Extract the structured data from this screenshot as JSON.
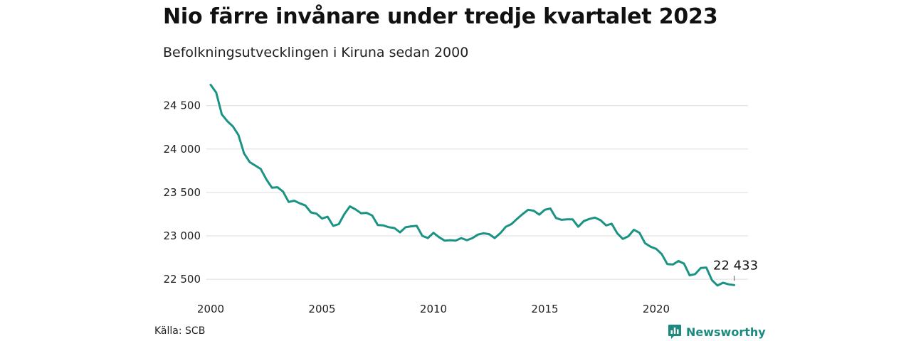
{
  "title": "Nio färre invånare under tredje kvartalet 2023",
  "subtitle": "Befolkningsutvecklingen i Kiruna sedan 2000",
  "source": "Källa: SCB",
  "brand": {
    "name": "Newsworthy",
    "icon": "bar-chart-logo-icon",
    "color": "#1d8a7f"
  },
  "colors": {
    "line": "#1a9384",
    "grid": "#dddddd",
    "text": "#222222"
  },
  "chart_data": {
    "type": "line",
    "title": "Nio färre invånare under tredje kvartalet 2023",
    "subtitle": "Befolkningsutvecklingen i Kiruna sedan 2000",
    "xlabel": "",
    "ylabel": "",
    "xlim": [
      2000,
      2023.75
    ],
    "ylim": [
      22400,
      24800
    ],
    "grid": true,
    "x_ticks": [
      {
        "value": 2000,
        "label": "2000"
      },
      {
        "value": 2005,
        "label": "2005"
      },
      {
        "value": 2010,
        "label": "2010"
      },
      {
        "value": 2015,
        "label": "2015"
      },
      {
        "value": 2020,
        "label": "2020"
      }
    ],
    "y_ticks": [
      {
        "value": 22500,
        "label": "22 500"
      },
      {
        "value": 23000,
        "label": "23 000"
      },
      {
        "value": 23500,
        "label": "23 500"
      },
      {
        "value": 24000,
        "label": "24 000"
      },
      {
        "value": 24500,
        "label": "24 500"
      }
    ],
    "annotation": {
      "x": 2023.5,
      "y": 22433,
      "label": "22 433"
    },
    "series": [
      {
        "x": [
          2000,
          2000.25,
          2000.5,
          2000.75,
          2001,
          2001.25,
          2001.5,
          2001.75,
          2002,
          2002.25,
          2002.5,
          2002.75,
          2003,
          2003.25,
          2003.5,
          2003.75,
          2004,
          2004.25,
          2004.5,
          2004.75,
          2005,
          2005.25,
          2005.5,
          2005.75,
          2006,
          2006.25,
          2006.5,
          2006.75,
          2007,
          2007.25,
          2007.5,
          2007.75,
          2008,
          2008.25,
          2008.5,
          2008.75,
          2009,
          2009.25,
          2009.5,
          2009.75,
          2010,
          2010.25,
          2010.5,
          2010.75,
          2011,
          2011.25,
          2011.5,
          2011.75,
          2012,
          2012.25,
          2012.5,
          2012.75,
          2013,
          2013.25,
          2013.5,
          2013.75,
          2014,
          2014.25,
          2014.5,
          2014.75,
          2015,
          2015.25,
          2015.5,
          2015.75,
          2016,
          2016.25,
          2016.5,
          2016.75,
          2017,
          2017.25,
          2017.5,
          2017.75,
          2018,
          2018.25,
          2018.5,
          2018.75,
          2019,
          2019.25,
          2019.5,
          2019.75,
          2020,
          2020.25,
          2020.5,
          2020.75,
          2021,
          2021.25,
          2021.5,
          2021.75,
          2022,
          2022.25,
          2022.5,
          2022.75,
          2023,
          2023.25,
          2023.5
        ],
        "values": [
          24740,
          24650,
          24400,
          24320,
          24260,
          24160,
          23950,
          23850,
          23810,
          23770,
          23650,
          23555,
          23560,
          23510,
          23390,
          23405,
          23375,
          23350,
          23270,
          23255,
          23200,
          23220,
          23115,
          23135,
          23250,
          23340,
          23305,
          23260,
          23265,
          23235,
          23125,
          23120,
          23100,
          23090,
          23040,
          23100,
          23110,
          23115,
          23000,
          22975,
          23035,
          22985,
          22945,
          22950,
          22945,
          22975,
          22950,
          22975,
          23015,
          23030,
          23020,
          22975,
          23030,
          23105,
          23135,
          23195,
          23250,
          23300,
          23290,
          23245,
          23300,
          23315,
          23205,
          23185,
          23190,
          23190,
          23105,
          23170,
          23195,
          23210,
          23180,
          23120,
          23140,
          23030,
          22965,
          22995,
          23070,
          23035,
          22915,
          22875,
          22850,
          22790,
          22675,
          22670,
          22710,
          22680,
          22545,
          22560,
          22630,
          22635,
          22490,
          22428,
          22460,
          22442,
          22433
        ]
      }
    ]
  }
}
